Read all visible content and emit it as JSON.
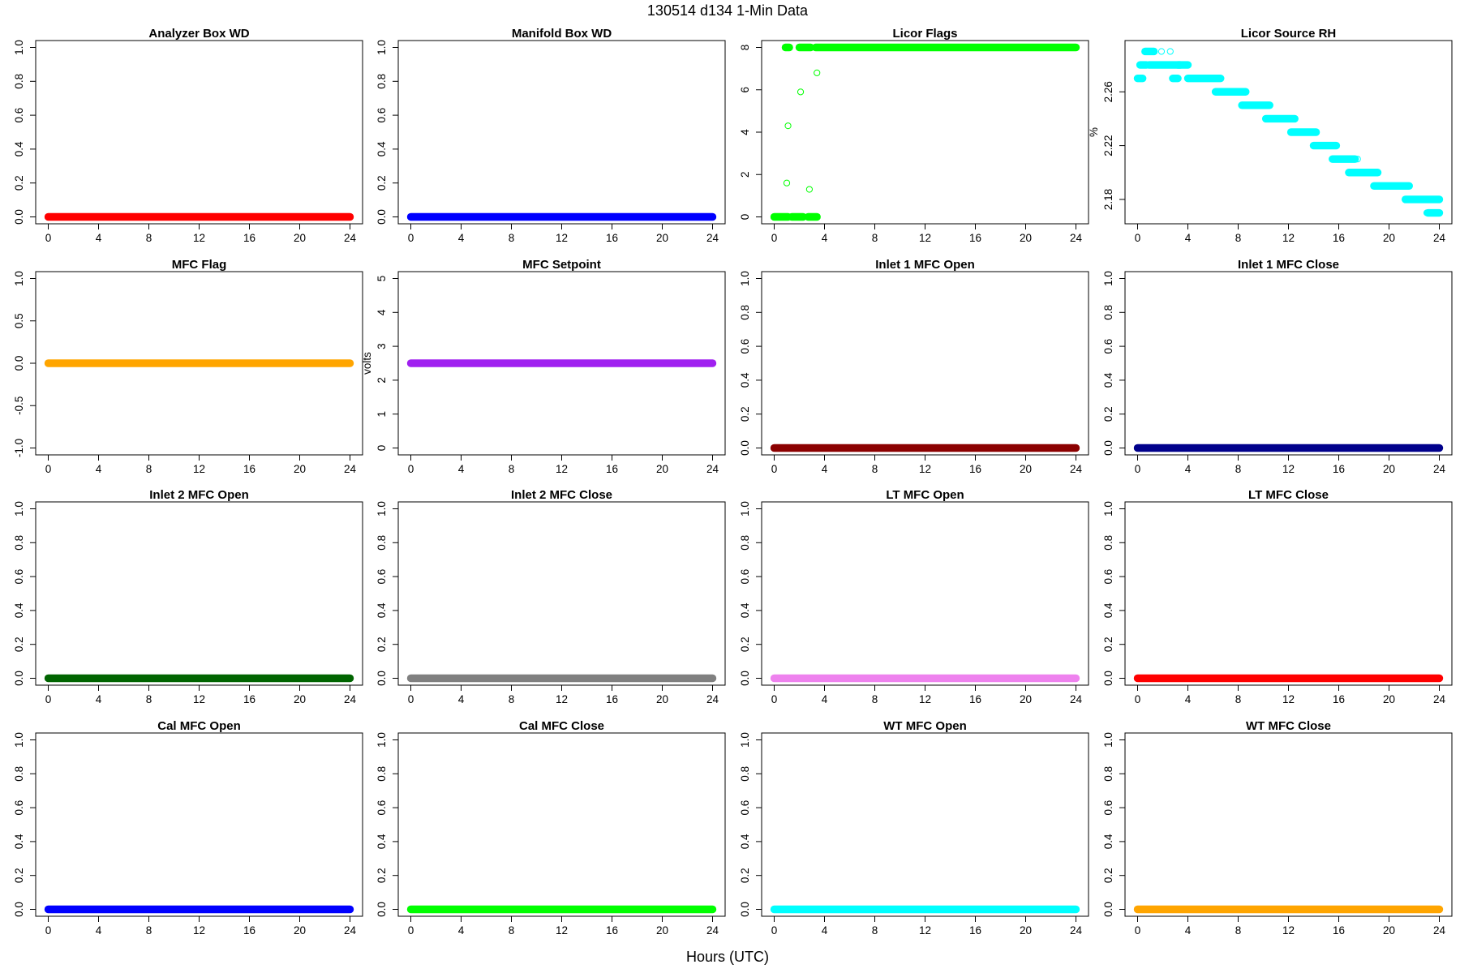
{
  "figure": {
    "title": "130514   d134   1-Min Data",
    "xlabel": "Hours (UTC)"
  },
  "chart_data": [
    {
      "type": "scatter",
      "title": "Analyzer Box WD",
      "ylabel": "",
      "color": "#ff0000",
      "fill": true,
      "xlim": [
        0,
        24
      ],
      "xticks": [
        0,
        4,
        8,
        12,
        16,
        20,
        24
      ],
      "ylim": [
        0,
        1
      ],
      "yticks": [
        "0.0",
        "0.2",
        "0.4",
        "0.6",
        "0.8",
        "1.0"
      ],
      "series": [
        {
          "x": [
            0,
            24
          ],
          "y": [
            0,
            0
          ],
          "kind": "constant"
        }
      ]
    },
    {
      "type": "scatter",
      "title": "Manifold Box WD",
      "ylabel": "",
      "color": "#0000ff",
      "fill": true,
      "xlim": [
        0,
        24
      ],
      "xticks": [
        0,
        4,
        8,
        12,
        16,
        20,
        24
      ],
      "ylim": [
        0,
        1
      ],
      "yticks": [
        "0.0",
        "0.2",
        "0.4",
        "0.6",
        "0.8",
        "1.0"
      ],
      "series": [
        {
          "x": [
            0,
            24
          ],
          "y": [
            0,
            0
          ],
          "kind": "constant"
        }
      ]
    },
    {
      "type": "scatter",
      "title": "Licor Flags",
      "ylabel": "",
      "color": "#00ff00",
      "fill": false,
      "xlim": [
        0,
        24
      ],
      "xticks": [
        0,
        4,
        8,
        12,
        16,
        20,
        24
      ],
      "ylim": [
        0,
        8
      ],
      "yticks": [
        "0",
        "2",
        "4",
        "6",
        "8"
      ],
      "series": [
        {
          "kind": "segments",
          "segments": [
            {
              "x0": 0.0,
              "x1": 1.1,
              "y": 0
            },
            {
              "x0": 1.4,
              "x1": 2.3,
              "y": 0
            },
            {
              "x0": 2.7,
              "x1": 3.4,
              "y": 0
            },
            {
              "x0": 0.9,
              "x1": 1.2,
              "y": 8
            },
            {
              "x0": 2.0,
              "x1": 2.9,
              "y": 8
            },
            {
              "x0": 3.3,
              "x1": 24.0,
              "y": 8
            }
          ]
        },
        {
          "kind": "points",
          "x": [
            1.0,
            1.1,
            2.1,
            2.8,
            3.4
          ],
          "y": [
            1.6,
            4.3,
            5.9,
            1.3,
            6.8
          ]
        }
      ]
    },
    {
      "type": "scatter",
      "title": "Licor Source RH",
      "ylabel": "%",
      "color": "#00ffff",
      "fill": false,
      "xlim": [
        0,
        24
      ],
      "xticks": [
        0,
        4,
        8,
        12,
        16,
        20,
        24
      ],
      "ylim": [
        2.167,
        2.293
      ],
      "yticks": [
        "2.18",
        "2.22",
        "2.26"
      ],
      "series": [
        {
          "kind": "segments",
          "segments": [
            {
              "x0": 0.0,
              "x1": 0.4,
              "y": 2.27
            },
            {
              "x0": 0.2,
              "x1": 0.7,
              "y": 2.28
            },
            {
              "x0": 0.6,
              "x1": 1.3,
              "y": 2.29
            },
            {
              "x0": 0.9,
              "x1": 4.0,
              "y": 2.28
            },
            {
              "x0": 2.8,
              "x1": 3.2,
              "y": 2.27
            },
            {
              "x0": 3.2,
              "x1": 3.4,
              "y": 2.28
            },
            {
              "x0": 4.0,
              "x1": 6.6,
              "y": 2.27
            },
            {
              "x0": 6.2,
              "x1": 8.6,
              "y": 2.26
            },
            {
              "x0": 8.3,
              "x1": 10.5,
              "y": 2.25
            },
            {
              "x0": 10.2,
              "x1": 12.5,
              "y": 2.24
            },
            {
              "x0": 12.2,
              "x1": 14.2,
              "y": 2.23
            },
            {
              "x0": 14.0,
              "x1": 15.8,
              "y": 2.22
            },
            {
              "x0": 15.5,
              "x1": 17.3,
              "y": 2.21
            },
            {
              "x0": 16.8,
              "x1": 19.1,
              "y": 2.2
            },
            {
              "x0": 18.8,
              "x1": 21.6,
              "y": 2.19
            },
            {
              "x0": 21.3,
              "x1": 24.0,
              "y": 2.18
            },
            {
              "x0": 23.1,
              "x1": 24.0,
              "y": 2.17
            }
          ]
        },
        {
          "kind": "points",
          "x": [
            1.9,
            2.6,
            8.5,
            17.5,
            23.0
          ],
          "y": [
            2.29,
            2.29,
            2.26,
            2.21,
            2.17
          ]
        }
      ]
    },
    {
      "type": "scatter",
      "title": "MFC Flag",
      "ylabel": "",
      "color": "#ffa500",
      "fill": true,
      "xlim": [
        0,
        24
      ],
      "xticks": [
        0,
        4,
        8,
        12,
        16,
        20,
        24
      ],
      "ylim": [
        -1,
        1
      ],
      "yticks": [
        "-1.0",
        "-0.5",
        "0.0",
        "0.5",
        "1.0"
      ],
      "series": [
        {
          "x": [
            0,
            24
          ],
          "y": [
            0,
            0
          ],
          "kind": "constant"
        }
      ]
    },
    {
      "type": "scatter",
      "title": "MFC Setpoint",
      "ylabel": "volts",
      "color": "#a020f0",
      "fill": true,
      "xlim": [
        0,
        24
      ],
      "xticks": [
        0,
        4,
        8,
        12,
        16,
        20,
        24
      ],
      "ylim": [
        0,
        5
      ],
      "yticks": [
        "0",
        "1",
        "2",
        "3",
        "4",
        "5"
      ],
      "series": [
        {
          "x": [
            0,
            24
          ],
          "y": [
            2.5,
            2.5
          ],
          "kind": "constant"
        }
      ]
    },
    {
      "type": "scatter",
      "title": "Inlet 1 MFC Open",
      "ylabel": "",
      "color": "#8b0000",
      "fill": true,
      "xlim": [
        0,
        24
      ],
      "xticks": [
        0,
        4,
        8,
        12,
        16,
        20,
        24
      ],
      "ylim": [
        0,
        1
      ],
      "yticks": [
        "0.0",
        "0.2",
        "0.4",
        "0.6",
        "0.8",
        "1.0"
      ],
      "series": [
        {
          "x": [
            0,
            24
          ],
          "y": [
            0,
            0
          ],
          "kind": "constant"
        }
      ]
    },
    {
      "type": "scatter",
      "title": "Inlet 1 MFC Close",
      "ylabel": "",
      "color": "#00008b",
      "fill": true,
      "xlim": [
        0,
        24
      ],
      "xticks": [
        0,
        4,
        8,
        12,
        16,
        20,
        24
      ],
      "ylim": [
        0,
        1
      ],
      "yticks": [
        "0.0",
        "0.2",
        "0.4",
        "0.6",
        "0.8",
        "1.0"
      ],
      "series": [
        {
          "x": [
            0,
            24
          ],
          "y": [
            0,
            0
          ],
          "kind": "constant"
        }
      ]
    },
    {
      "type": "scatter",
      "title": "Inlet 2 MFC Open",
      "ylabel": "",
      "color": "#006400",
      "fill": true,
      "xlim": [
        0,
        24
      ],
      "xticks": [
        0,
        4,
        8,
        12,
        16,
        20,
        24
      ],
      "ylim": [
        0,
        1
      ],
      "yticks": [
        "0.0",
        "0.2",
        "0.4",
        "0.6",
        "0.8",
        "1.0"
      ],
      "series": [
        {
          "x": [
            0,
            24
          ],
          "y": [
            0,
            0
          ],
          "kind": "constant"
        }
      ]
    },
    {
      "type": "scatter",
      "title": "Inlet 2 MFC Close",
      "ylabel": "",
      "color": "#808080",
      "fill": true,
      "xlim": [
        0,
        24
      ],
      "xticks": [
        0,
        4,
        8,
        12,
        16,
        20,
        24
      ],
      "ylim": [
        0,
        1
      ],
      "yticks": [
        "0.0",
        "0.2",
        "0.4",
        "0.6",
        "0.8",
        "1.0"
      ],
      "series": [
        {
          "x": [
            0,
            24
          ],
          "y": [
            0,
            0
          ],
          "kind": "constant"
        }
      ]
    },
    {
      "type": "scatter",
      "title": "LT MFC Open",
      "ylabel": "",
      "color": "#ee82ee",
      "fill": true,
      "xlim": [
        0,
        24
      ],
      "xticks": [
        0,
        4,
        8,
        12,
        16,
        20,
        24
      ],
      "ylim": [
        0,
        1
      ],
      "yticks": [
        "0.0",
        "0.2",
        "0.4",
        "0.6",
        "0.8",
        "1.0"
      ],
      "series": [
        {
          "x": [
            0,
            24
          ],
          "y": [
            0,
            0
          ],
          "kind": "constant"
        }
      ]
    },
    {
      "type": "scatter",
      "title": "LT MFC Close",
      "ylabel": "",
      "color": "#ff0000",
      "fill": true,
      "xlim": [
        0,
        24
      ],
      "xticks": [
        0,
        4,
        8,
        12,
        16,
        20,
        24
      ],
      "ylim": [
        0,
        1
      ],
      "yticks": [
        "0.0",
        "0.2",
        "0.4",
        "0.6",
        "0.8",
        "1.0"
      ],
      "series": [
        {
          "x": [
            0,
            24
          ],
          "y": [
            0,
            0
          ],
          "kind": "constant"
        }
      ]
    },
    {
      "type": "scatter",
      "title": "Cal MFC Open",
      "ylabel": "",
      "color": "#0000ff",
      "fill": true,
      "xlim": [
        0,
        24
      ],
      "xticks": [
        0,
        4,
        8,
        12,
        16,
        20,
        24
      ],
      "ylim": [
        0,
        1
      ],
      "yticks": [
        "0.0",
        "0.2",
        "0.4",
        "0.6",
        "0.8",
        "1.0"
      ],
      "series": [
        {
          "x": [
            0,
            24
          ],
          "y": [
            0,
            0
          ],
          "kind": "constant"
        }
      ]
    },
    {
      "type": "scatter",
      "title": "Cal MFC Close",
      "ylabel": "",
      "color": "#00ff00",
      "fill": true,
      "xlim": [
        0,
        24
      ],
      "xticks": [
        0,
        4,
        8,
        12,
        16,
        20,
        24
      ],
      "ylim": [
        0,
        1
      ],
      "yticks": [
        "0.0",
        "0.2",
        "0.4",
        "0.6",
        "0.8",
        "1.0"
      ],
      "series": [
        {
          "x": [
            0,
            24
          ],
          "y": [
            0,
            0
          ],
          "kind": "constant"
        }
      ]
    },
    {
      "type": "scatter",
      "title": "WT MFC Open",
      "ylabel": "",
      "color": "#00ffff",
      "fill": true,
      "xlim": [
        0,
        24
      ],
      "xticks": [
        0,
        4,
        8,
        12,
        16,
        20,
        24
      ],
      "ylim": [
        0,
        1
      ],
      "yticks": [
        "0.0",
        "0.2",
        "0.4",
        "0.6",
        "0.8",
        "1.0"
      ],
      "series": [
        {
          "x": [
            0,
            24
          ],
          "y": [
            0,
            0
          ],
          "kind": "constant"
        }
      ]
    },
    {
      "type": "scatter",
      "title": "WT MFC Close",
      "ylabel": "",
      "color": "#ffa500",
      "fill": true,
      "xlim": [
        0,
        24
      ],
      "xticks": [
        0,
        4,
        8,
        12,
        16,
        20,
        24
      ],
      "ylim": [
        0,
        1
      ],
      "yticks": [
        "0.0",
        "0.2",
        "0.4",
        "0.6",
        "0.8",
        "1.0"
      ],
      "series": [
        {
          "x": [
            0,
            24
          ],
          "y": [
            0,
            0
          ],
          "kind": "constant"
        }
      ]
    }
  ]
}
